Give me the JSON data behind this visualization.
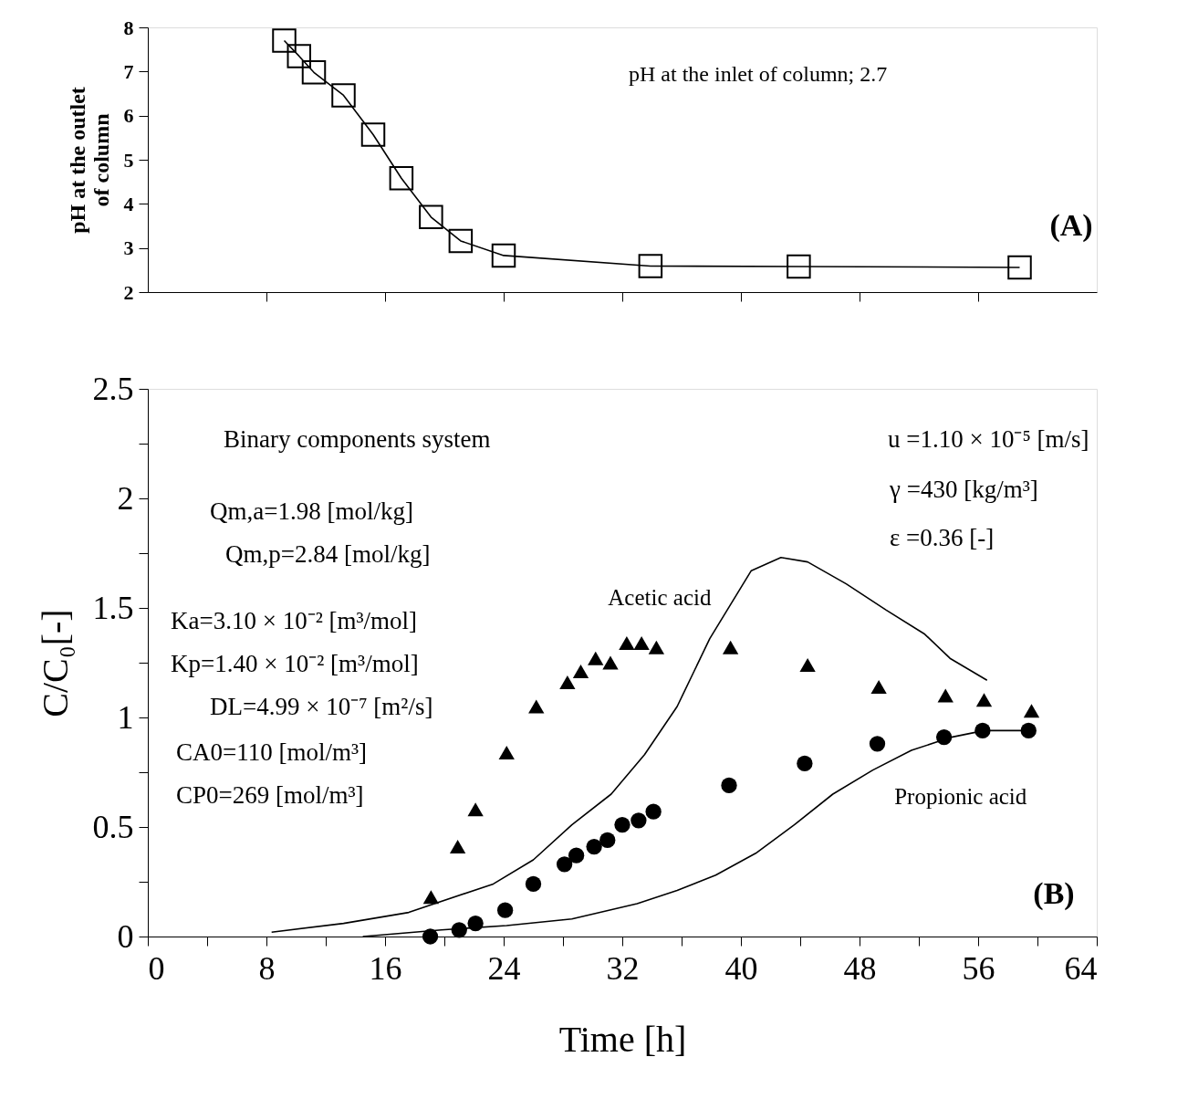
{
  "chart_data": [
    {
      "type": "line",
      "marker": "square",
      "ylabel": "pH at the outlet\nof column",
      "xlim": [
        0,
        64
      ],
      "ylim": [
        2,
        8
      ],
      "yticks": [
        2,
        3,
        4,
        5,
        6,
        7,
        8
      ],
      "xticks": [
        {
          "value": 8,
          "label": null
        },
        {
          "value": 16,
          "label": null
        },
        {
          "value": 24,
          "label": null
        },
        {
          "value": 32,
          "label": null
        },
        {
          "value": 40,
          "label": null
        },
        {
          "value": 48,
          "label": null
        },
        {
          "value": 56,
          "label": null
        }
      ],
      "tick_labels": "y",
      "grid": false,
      "annotations": [
        "pH at the inlet of column; 2.7",
        "(A)"
      ],
      "series": [
        {
          "color": "#000000",
          "x": [
            9.2,
            10.2,
            11.2,
            13.2,
            15.2,
            17.1,
            19.1,
            21.1,
            24.0,
            33.9,
            43.9,
            58.8
          ],
          "values": [
            7.7,
            7.35,
            6.98,
            6.46,
            5.57,
            4.58,
            3.7,
            3.16,
            2.83,
            2.59,
            2.58,
            2.56
          ]
        }
      ]
    },
    {
      "type": "scatter",
      "xlabel": "Time [h]",
      "ylabel": "C/C₀[-]",
      "xlim": [
        0,
        64
      ],
      "ylim": [
        0,
        2.5
      ],
      "grid": false,
      "xticks": [
        0,
        {
          "value": 4,
          "label": null
        },
        8,
        {
          "value": 12,
          "label": null
        },
        16,
        {
          "value": 20,
          "label": null
        },
        24,
        {
          "value": 28,
          "label": null
        },
        32,
        {
          "value": 36,
          "label": null
        },
        40,
        {
          "value": 44,
          "label": null
        },
        48,
        {
          "value": 52,
          "label": null
        },
        56,
        {
          "value": 60,
          "label": null
        },
        64
      ],
      "yticks": [
        0,
        {
          "value": 0.25,
          "label": null
        },
        0.5,
        {
          "value": 0.75,
          "label": null
        },
        1,
        {
          "value": 1.25,
          "label": null
        },
        1.5,
        {
          "value": 1.75,
          "label": null
        },
        2,
        {
          "value": 2.25,
          "label": null
        },
        2.5
      ],
      "annotations": [
        "Binary components system",
        "Qm,a=1.98 [mol/kg]",
        "Qm,p=2.84 [mol/kg]",
        "Ka=3.10 × 10⁻² [m³/mol]",
        "Kp=1.40 × 10⁻² [m³/mol]",
        "DL=4.99 × 10⁻⁷ [m²/s]",
        "CA0=110 [mol/m³]",
        "CP0=269 [mol/m³]",
        "u =1.10 × 10⁻⁵ [m/s]",
        "γ =430 [kg/m³]",
        "ε =0.36 [-]",
        "(B)"
      ],
      "series": [
        {
          "type": "scatter",
          "marker": "triangle",
          "color": "#000000",
          "x": [
            19.1,
            20.9,
            22.1,
            24.2,
            26.2,
            28.3,
            29.2,
            30.2,
            31.2,
            32.3,
            33.3,
            34.3,
            39.3,
            44.5,
            49.3,
            53.8,
            56.4,
            59.6
          ],
          "values": [
            0.18,
            0.41,
            0.58,
            0.84,
            1.05,
            1.16,
            1.21,
            1.27,
            1.25,
            1.34,
            1.34,
            1.32,
            1.32,
            1.24,
            1.14,
            1.1,
            1.08,
            1.03
          ]
        },
        {
          "type": "scatter",
          "marker": "circle",
          "color": "#000000",
          "x": [
            19.05,
            21.0,
            22.1,
            24.1,
            26.0,
            28.1,
            28.9,
            30.1,
            31.0,
            32.0,
            33.1,
            34.1,
            39.2,
            44.3,
            49.2,
            53.7,
            56.3,
            59.4
          ],
          "values": [
            0.0,
            0.03,
            0.06,
            0.12,
            0.24,
            0.33,
            0.37,
            0.41,
            0.44,
            0.51,
            0.53,
            0.57,
            0.69,
            0.79,
            0.88,
            0.91,
            0.94,
            0.94
          ]
        },
        {
          "type": "line",
          "name": "Acetic acid",
          "marker": "none",
          "color": "#000000",
          "x": [
            8.35,
            13.2,
            17.6,
            23.3,
            26.0,
            28.6,
            31.25,
            33.5,
            35.7,
            37.9,
            40.7,
            42.7,
            44.5,
            47.1,
            49.8,
            52.4,
            54.1,
            56.6
          ],
          "values": [
            0.02,
            0.06,
            0.11,
            0.24,
            0.35,
            0.51,
            0.65,
            0.83,
            1.05,
            1.36,
            1.67,
            1.73,
            1.71,
            1.61,
            1.49,
            1.38,
            1.27,
            1.17
          ]
        },
        {
          "type": "line",
          "name": "Propionic acid",
          "marker": "none",
          "color": "#000000",
          "x": [
            14.5,
            19.8,
            24.2,
            28.6,
            33.0,
            35.7,
            38.3,
            41.0,
            43.6,
            46.2,
            48.9,
            51.5,
            54.2,
            56.4,
            59.4
          ],
          "values": [
            0.0,
            0.03,
            0.05,
            0.08,
            0.15,
            0.21,
            0.28,
            0.38,
            0.51,
            0.65,
            0.76,
            0.85,
            0.91,
            0.94,
            0.94
          ]
        }
      ]
    }
  ]
}
